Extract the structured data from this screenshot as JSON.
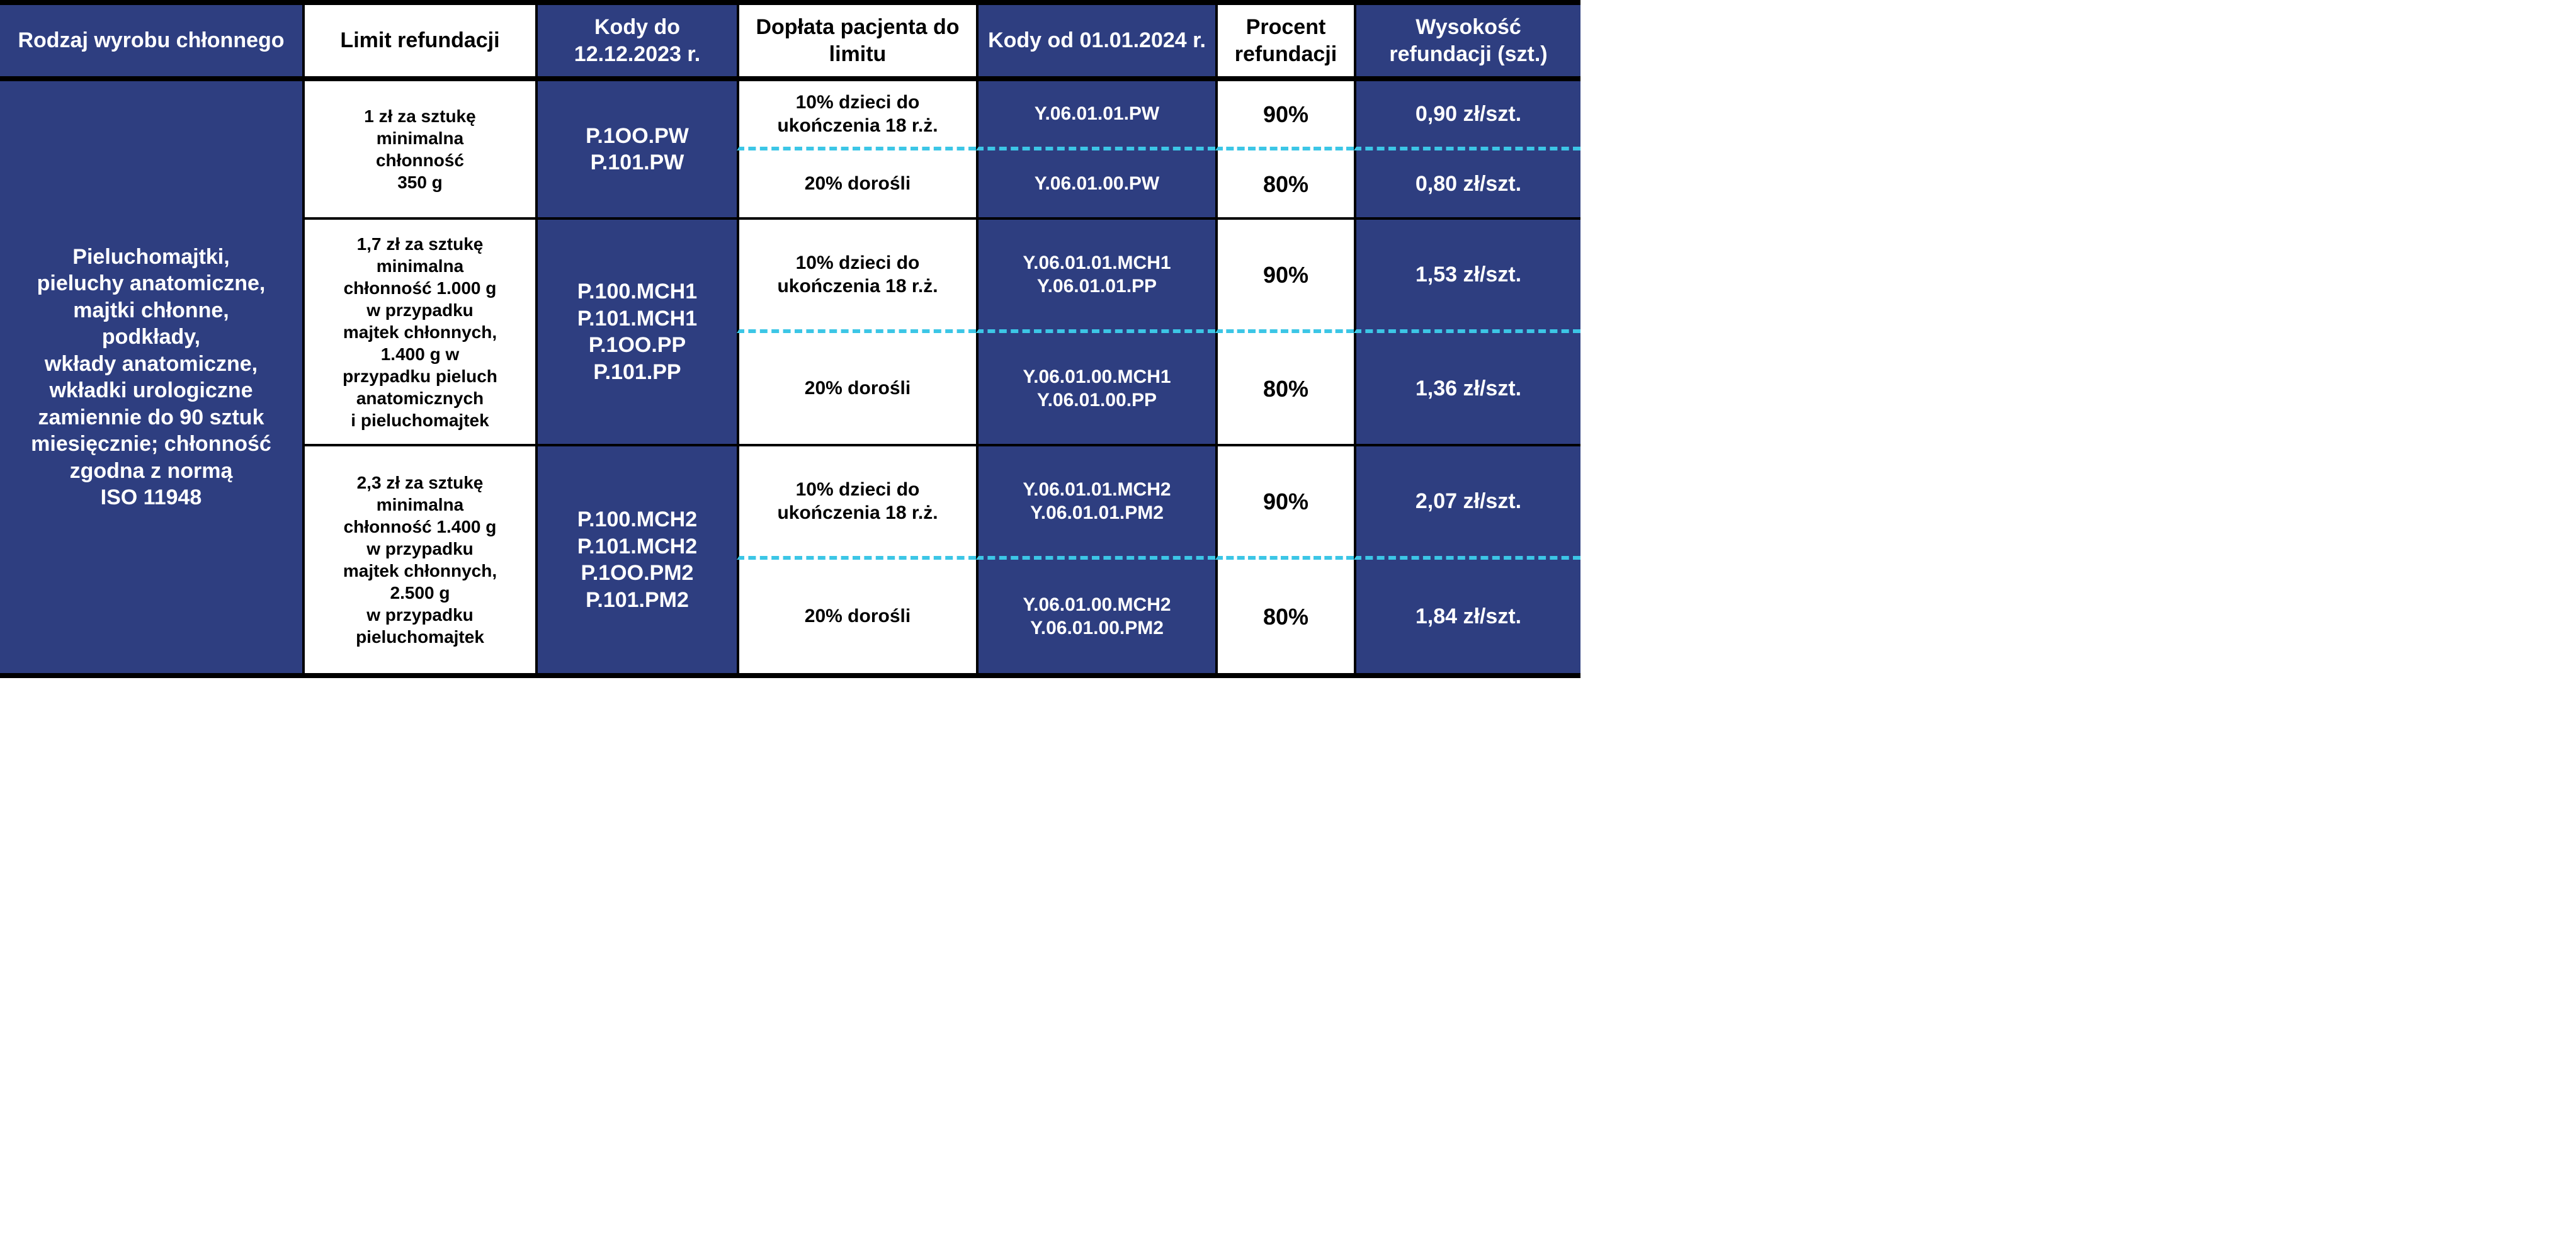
{
  "colors": {
    "blue_bg": "#2e3e80",
    "white_bg": "#ffffff",
    "dash": "#3cc6e6",
    "border": "#000000"
  },
  "headers": {
    "c1": "Rodzaj wyrobu chłonnego",
    "c2": "Limit refundacji",
    "c3": "Kody do 12.12.2023 r.",
    "c4": "Dopłata pacjenta do limitu",
    "c5": "Kody od 01.01.2024 r.",
    "c6": "Procent refundacji",
    "c7": "Wysokość refundacji (szt.)"
  },
  "rowlabel": "Pieluchomajtki,\npieluchy anatomiczne,\nmajtki chłonne,\npodkłady,\nwkłady anatomiczne,\nwkładki urologiczne\nzamiennie do 90 sztuk\nmiesięcznie; chłonność\nzgodna z normą\nISO 11948",
  "groups": [
    {
      "limit": "1 zł za sztukę\nminimalna\nchłonność\n350 g",
      "codes_old": "P.1OO.PW\nP.101.PW",
      "sub": [
        {
          "pay": "10% dzieci do\nukończenia 18 r.ż.",
          "codes_new": "Y.06.01.01.PW",
          "pct": "90%",
          "amt": "0,90 zł/szt."
        },
        {
          "pay": "20% dorośli",
          "codes_new": "Y.06.01.00.PW",
          "pct": "80%",
          "amt": "0,80 zł/szt."
        }
      ]
    },
    {
      "limit": "1,7 zł za sztukę\nminimalna\nchłonność 1.000 g\nw przypadku\nmajtek chłonnych,\n1.400 g w\nprzypadku pieluch\nanatomicznych\ni pieluchomajtek",
      "codes_old": "P.100.MCH1\nP.101.MCH1\nP.1OO.PP\nP.101.PP",
      "sub": [
        {
          "pay": "10% dzieci do\nukończenia 18 r.ż.",
          "codes_new": "Y.06.01.01.MCH1\nY.06.01.01.PP",
          "pct": "90%",
          "amt": "1,53 zł/szt."
        },
        {
          "pay": "20% dorośli",
          "codes_new": "Y.06.01.00.MCH1\nY.06.01.00.PP",
          "pct": "80%",
          "amt": "1,36 zł/szt."
        }
      ]
    },
    {
      "limit": "2,3 zł za sztukę\nminimalna\nchłonność 1.400 g\nw przypadku\nmajtek chłonnych,\n2.500 g\nw przypadku\npieluchomajtek",
      "codes_old": "P.100.MCH2\nP.101.MCH2\nP.1OO.PM2\nP.101.PM2",
      "sub": [
        {
          "pay": "10% dzieci do\nukończenia 18 r.ż.",
          "codes_new": "Y.06.01.01.MCH2\nY.06.01.01.PM2",
          "pct": "90%",
          "amt": "2,07 zł/szt."
        },
        {
          "pay": "20% dorośli",
          "codes_new": "Y.06.01.00.MCH2\nY.06.01.00.PM2",
          "pct": "80%",
          "amt": "1,84 zł/szt."
        }
      ]
    }
  ]
}
